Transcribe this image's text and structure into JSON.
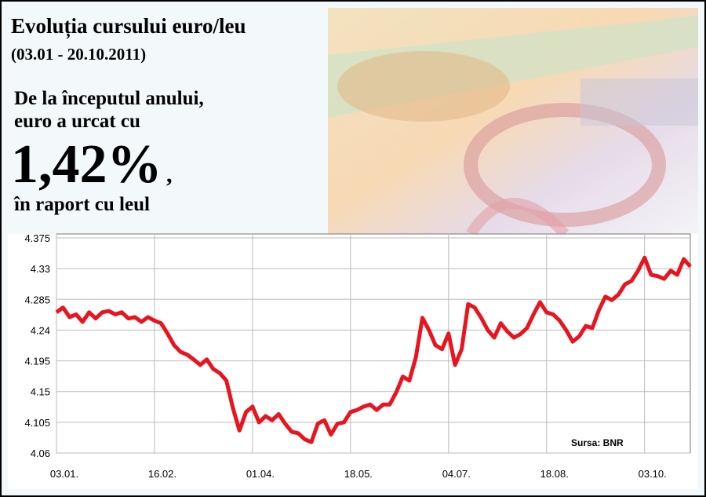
{
  "header": {
    "title": "Evoluția cursului euro/leu",
    "period": "(03.01 - 20.10.2011)",
    "line1": "De la începutul anului,",
    "line2": "euro a urcat cu",
    "highlight": "1,42%",
    "highlight_suffix": ",",
    "line3": "în raport cu leul"
  },
  "chart_data": {
    "type": "line",
    "source": "Sursa: BNR",
    "color": "#e8141e",
    "grid": true,
    "ylim": [
      4.06,
      4.375
    ],
    "yticks": [
      4.06,
      4.105,
      4.15,
      4.195,
      4.24,
      4.285,
      4.33,
      4.375
    ],
    "categories": [
      "03.01.",
      null,
      null,
      null,
      null,
      null,
      null,
      null,
      null,
      null,
      null,
      null,
      null,
      null,
      null,
      "16.02.",
      null,
      null,
      null,
      null,
      null,
      null,
      null,
      null,
      null,
      null,
      null,
      null,
      null,
      null,
      "01.04.",
      null,
      null,
      null,
      null,
      null,
      null,
      null,
      null,
      null,
      null,
      null,
      null,
      null,
      null,
      "18.05.",
      null,
      null,
      null,
      null,
      null,
      null,
      null,
      null,
      null,
      null,
      null,
      null,
      null,
      null,
      "04.07.",
      null,
      null,
      null,
      null,
      null,
      null,
      null,
      null,
      null,
      null,
      null,
      null,
      null,
      null,
      "18.08.",
      null,
      null,
      null,
      null,
      null,
      null,
      null,
      null,
      null,
      null,
      null,
      null,
      null,
      null,
      "03.10.",
      null,
      null,
      null,
      null,
      null,
      null,
      null
    ],
    "values": [
      4.266,
      4.273,
      4.259,
      4.263,
      4.252,
      4.266,
      4.257,
      4.266,
      4.268,
      4.263,
      4.266,
      4.257,
      4.259,
      4.252,
      4.259,
      4.254,
      4.25,
      4.235,
      4.218,
      4.208,
      4.204,
      4.197,
      4.189,
      4.197,
      4.183,
      4.177,
      4.166,
      4.126,
      4.093,
      4.12,
      4.128,
      4.105,
      4.114,
      4.108,
      4.117,
      4.103,
      4.091,
      4.089,
      4.08,
      4.076,
      4.103,
      4.108,
      4.087,
      4.103,
      4.105,
      4.12,
      4.123,
      4.128,
      4.131,
      4.123,
      4.131,
      4.131,
      4.149,
      4.172,
      4.166,
      4.2,
      4.258,
      4.24,
      4.218,
      4.212,
      4.235,
      4.189,
      4.212,
      4.278,
      4.273,
      4.258,
      4.24,
      4.229,
      4.25,
      4.238,
      4.229,
      4.234,
      4.243,
      4.263,
      4.281,
      4.266,
      4.263,
      4.254,
      4.24,
      4.223,
      4.231,
      4.246,
      4.243,
      4.269,
      4.289,
      4.284,
      4.292,
      4.307,
      4.312,
      4.327,
      4.346,
      4.321,
      4.319,
      4.315,
      4.327,
      4.321,
      4.344,
      4.333
    ]
  }
}
